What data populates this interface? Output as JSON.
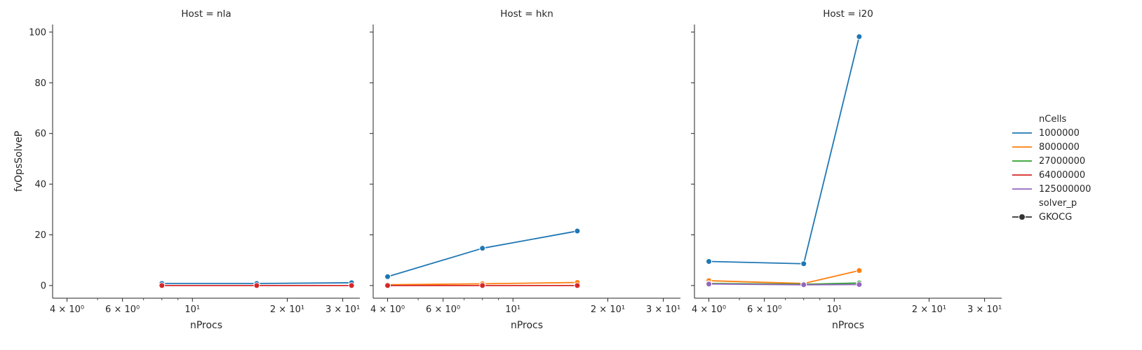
{
  "colors": {
    "1000000": "#1f77b4",
    "8000000": "#ff7f0e",
    "27000000": "#2ca02c",
    "64000000": "#d62728",
    "125000000": "#9467bd",
    "axis": "#262626"
  },
  "chart_data": {
    "type": "line",
    "xscale": "log",
    "xlim": [
      3.6,
      34
    ],
    "ylim": [
      -5,
      103
    ],
    "xlabel": "nProcs",
    "ylabel": "fvOpsSolveP",
    "x_ticks": [
      {
        "value": 4,
        "label": "4 × 10⁰"
      },
      {
        "value": 6,
        "label": "6 × 10⁰"
      },
      {
        "value": 10,
        "label": "10¹"
      },
      {
        "value": 20,
        "label": "2 × 10¹"
      },
      {
        "value": 30,
        "label": "3 × 10¹"
      }
    ],
    "x_minor_ticks": [
      5,
      7,
      8,
      9
    ],
    "y_ticks": [
      {
        "value": 0,
        "label": "0"
      },
      {
        "value": 20,
        "label": "20"
      },
      {
        "value": 40,
        "label": "40"
      },
      {
        "value": 60,
        "label": "60"
      },
      {
        "value": 80,
        "label": "80"
      },
      {
        "value": 100,
        "label": "100"
      }
    ],
    "panels": [
      {
        "title": "Host = nla",
        "series": [
          {
            "name": "1000000",
            "x": [
              8,
              16,
              32
            ],
            "y": [
              0.8,
              0.8,
              1.1
            ]
          },
          {
            "name": "64000000",
            "x": [
              8,
              16,
              32
            ],
            "y": [
              0.0,
              0.0,
              0.0
            ]
          }
        ]
      },
      {
        "title": "Host = hkn",
        "series": [
          {
            "name": "1000000",
            "x": [
              4,
              8,
              16
            ],
            "y": [
              3.5,
              14.7,
              21.5
            ]
          },
          {
            "name": "8000000",
            "x": [
              4,
              8,
              16
            ],
            "y": [
              0.3,
              0.7,
              1.2
            ]
          },
          {
            "name": "64000000",
            "x": [
              4,
              8,
              16
            ],
            "y": [
              0.0,
              0.0,
              0.0
            ]
          }
        ]
      },
      {
        "title": "Host = i20",
        "series": [
          {
            "name": "1000000",
            "x": [
              4,
              8,
              12
            ],
            "y": [
              9.5,
              8.6,
              98.2
            ]
          },
          {
            "name": "8000000",
            "x": [
              4,
              8,
              12
            ],
            "y": [
              1.9,
              0.8,
              5.9
            ]
          },
          {
            "name": "27000000",
            "x": [
              4,
              8,
              12
            ],
            "y": [
              0.8,
              0.5,
              1.0
            ]
          },
          {
            "name": "125000000",
            "x": [
              4,
              8,
              12
            ],
            "y": [
              0.6,
              0.3,
              0.4
            ]
          }
        ]
      }
    ],
    "legend": {
      "placement": "right",
      "hue_title": "nCells",
      "hue_entries": [
        "1000000",
        "8000000",
        "27000000",
        "64000000",
        "125000000"
      ],
      "style_title": "solver_p",
      "style_entries": [
        "GKOCG"
      ]
    }
  }
}
